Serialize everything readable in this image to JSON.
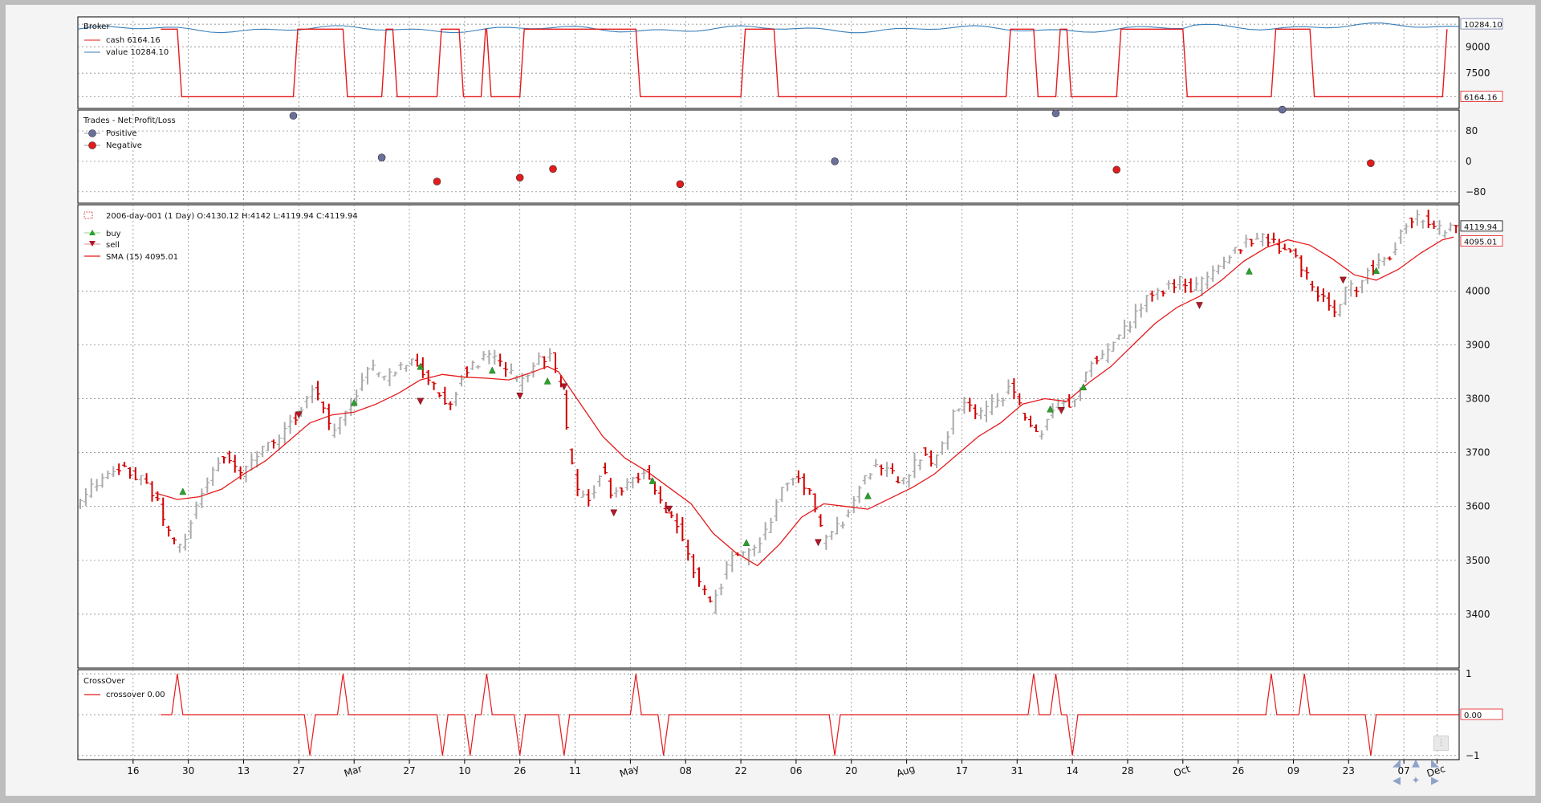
{
  "chart_data": [
    {
      "type": "line",
      "title": "Broker",
      "series": [
        {
          "name": "cash 6164.16",
          "color": "#e41a1c",
          "last": 6164.16
        },
        {
          "name": "value 10284.10",
          "color": "#377eb8",
          "last": 10284.1
        }
      ],
      "yticks": [
        "10284.10",
        "9000",
        "7500",
        "6164.16"
      ],
      "ylim": [
        5500,
        10700
      ],
      "cash_levels": {
        "high": 10000,
        "low": 6164.16
      },
      "cash_low_intervals": [
        [
          18,
          39
        ],
        [
          48,
          55
        ],
        [
          57,
          65
        ],
        [
          69,
          73
        ],
        [
          74,
          80
        ],
        [
          101,
          120
        ],
        [
          126,
          168
        ],
        [
          173,
          177
        ],
        [
          179,
          188
        ],
        [
          200,
          216
        ],
        [
          223,
          247
        ]
      ]
    },
    {
      "type": "scatter",
      "title": "Trades - Net Profit/Loss",
      "legend": [
        {
          "name": "Positive",
          "color": "#6a6f9b"
        },
        {
          "name": "Negative",
          "color": "#e41a1c"
        }
      ],
      "yticks": [
        "80",
        "0",
        "−80"
      ],
      "ylim": [
        -110,
        135
      ],
      "points": [
        {
          "x": 39,
          "y": 120,
          "kind": "Positive"
        },
        {
          "x": 55,
          "y": 10,
          "kind": "Positive"
        },
        {
          "x": 65,
          "y": -53,
          "kind": "Negative"
        },
        {
          "x": 80,
          "y": -43,
          "kind": "Negative"
        },
        {
          "x": 86,
          "y": -20,
          "kind": "Negative"
        },
        {
          "x": 109,
          "y": -60,
          "kind": "Negative"
        },
        {
          "x": 137,
          "y": 0,
          "kind": "Positive"
        },
        {
          "x": 177,
          "y": 126,
          "kind": "Positive"
        },
        {
          "x": 188,
          "y": -22,
          "kind": "Negative"
        },
        {
          "x": 218,
          "y": 136,
          "kind": "Positive"
        },
        {
          "x": 234,
          "y": -5,
          "kind": "Negative"
        }
      ]
    },
    {
      "type": "line",
      "title": "2006-day-001 (1 Day) O:4130.12 H:4142 L:4119.94 C:4119.94",
      "legend": [
        {
          "name": "buy",
          "color": "#2ca02c"
        },
        {
          "name": "sell",
          "color": "#b2182b"
        },
        {
          "name": "SMA (15) 4095.01",
          "color": "#e41a1c"
        }
      ],
      "yticks": [
        "4000",
        "3900",
        "3800",
        "3700",
        "3600",
        "3500",
        "3400"
      ],
      "ylim": [
        3300,
        4160
      ],
      "last_labels": {
        "close": "4119.94",
        "sma": "4095.01"
      },
      "price_path": [
        [
          0,
          3600
        ],
        [
          3,
          3640
        ],
        [
          8,
          3670
        ],
        [
          12,
          3650
        ],
        [
          15,
          3600
        ],
        [
          17,
          3540
        ],
        [
          19,
          3520
        ],
        [
          21,
          3580
        ],
        [
          23,
          3640
        ],
        [
          25,
          3670
        ],
        [
          27,
          3700
        ],
        [
          30,
          3660
        ],
        [
          33,
          3700
        ],
        [
          36,
          3720
        ],
        [
          39,
          3760
        ],
        [
          41,
          3790
        ],
        [
          43,
          3820
        ],
        [
          45,
          3780
        ],
        [
          46,
          3740
        ],
        [
          49,
          3780
        ],
        [
          51,
          3820
        ],
        [
          53,
          3860
        ],
        [
          56,
          3840
        ],
        [
          60,
          3870
        ],
        [
          62,
          3860
        ],
        [
          64,
          3830
        ],
        [
          67,
          3790
        ],
        [
          68,
          3800
        ],
        [
          70,
          3850
        ],
        [
          73,
          3870
        ],
        [
          75,
          3880
        ],
        [
          78,
          3850
        ],
        [
          80,
          3830
        ],
        [
          83,
          3870
        ],
        [
          86,
          3880
        ],
        [
          88,
          3800
        ],
        [
          89,
          3700
        ],
        [
          91,
          3610
        ],
        [
          93,
          3620
        ],
        [
          95,
          3670
        ],
        [
          97,
          3620
        ],
        [
          100,
          3650
        ],
        [
          103,
          3660
        ],
        [
          105,
          3620
        ],
        [
          107,
          3580
        ],
        [
          109,
          3560
        ],
        [
          111,
          3500
        ],
        [
          113,
          3450
        ],
        [
          115,
          3410
        ],
        [
          117,
          3470
        ],
        [
          119,
          3520
        ],
        [
          121,
          3510
        ],
        [
          123,
          3520
        ],
        [
          125,
          3560
        ],
        [
          127,
          3620
        ],
        [
          129,
          3650
        ],
        [
          131,
          3650
        ],
        [
          133,
          3620
        ],
        [
          135,
          3540
        ],
        [
          137,
          3550
        ],
        [
          139,
          3580
        ],
        [
          141,
          3620
        ],
        [
          143,
          3660
        ],
        [
          145,
          3680
        ],
        [
          147,
          3670
        ],
        [
          149,
          3640
        ],
        [
          151,
          3670
        ],
        [
          153,
          3700
        ],
        [
          155,
          3680
        ],
        [
          157,
          3720
        ],
        [
          159,
          3780
        ],
        [
          161,
          3790
        ],
        [
          163,
          3770
        ],
        [
          165,
          3780
        ],
        [
          167,
          3800
        ],
        [
          169,
          3820
        ],
        [
          170,
          3800
        ],
        [
          172,
          3760
        ],
        [
          174,
          3730
        ],
        [
          176,
          3770
        ],
        [
          178,
          3800
        ],
        [
          180,
          3790
        ],
        [
          182,
          3830
        ],
        [
          184,
          3870
        ],
        [
          186,
          3880
        ],
        [
          188,
          3910
        ],
        [
          190,
          3930
        ],
        [
          192,
          3960
        ],
        [
          194,
          3990
        ],
        [
          196,
          4000
        ],
        [
          198,
          4010
        ],
        [
          200,
          4020
        ],
        [
          202,
          4000
        ],
        [
          204,
          4020
        ],
        [
          206,
          4040
        ],
        [
          208,
          4060
        ],
        [
          210,
          4080
        ],
        [
          212,
          4090
        ],
        [
          214,
          4100
        ],
        [
          216,
          4090
        ],
        [
          218,
          4080
        ],
        [
          220,
          4070
        ],
        [
          222,
          4040
        ],
        [
          224,
          4000
        ],
        [
          226,
          3980
        ],
        [
          228,
          3960
        ],
        [
          230,
          4010
        ],
        [
          232,
          4000
        ],
        [
          234,
          4040
        ],
        [
          236,
          4050
        ],
        [
          238,
          4070
        ],
        [
          240,
          4120
        ],
        [
          242,
          4140
        ],
        [
          245,
          4130
        ],
        [
          247,
          4110
        ],
        [
          249,
          4120
        ]
      ],
      "sma_path": [
        [
          14,
          3625
        ],
        [
          18,
          3613
        ],
        [
          22,
          3618
        ],
        [
          26,
          3632
        ],
        [
          30,
          3660
        ],
        [
          34,
          3685
        ],
        [
          38,
          3720
        ],
        [
          42,
          3755
        ],
        [
          46,
          3770
        ],
        [
          50,
          3775
        ],
        [
          54,
          3790
        ],
        [
          58,
          3810
        ],
        [
          62,
          3835
        ],
        [
          66,
          3845
        ],
        [
          70,
          3840
        ],
        [
          74,
          3838
        ],
        [
          78,
          3835
        ],
        [
          82,
          3848
        ],
        [
          85,
          3860
        ],
        [
          87,
          3850
        ],
        [
          91,
          3790
        ],
        [
          95,
          3730
        ],
        [
          99,
          3690
        ],
        [
          103,
          3665
        ],
        [
          107,
          3635
        ],
        [
          111,
          3605
        ],
        [
          115,
          3550
        ],
        [
          119,
          3515
        ],
        [
          123,
          3490
        ],
        [
          127,
          3530
        ],
        [
          131,
          3580
        ],
        [
          135,
          3605
        ],
        [
          139,
          3600
        ],
        [
          143,
          3595
        ],
        [
          147,
          3615
        ],
        [
          151,
          3635
        ],
        [
          155,
          3660
        ],
        [
          159,
          3695
        ],
        [
          163,
          3730
        ],
        [
          167,
          3755
        ],
        [
          171,
          3790
        ],
        [
          175,
          3800
        ],
        [
          179,
          3795
        ],
        [
          183,
          3830
        ],
        [
          187,
          3860
        ],
        [
          191,
          3900
        ],
        [
          195,
          3940
        ],
        [
          199,
          3970
        ],
        [
          203,
          3990
        ],
        [
          207,
          4020
        ],
        [
          211,
          4055
        ],
        [
          215,
          4080
        ],
        [
          219,
          4095
        ],
        [
          223,
          4085
        ],
        [
          227,
          4060
        ],
        [
          231,
          4030
        ],
        [
          235,
          4020
        ],
        [
          239,
          4040
        ],
        [
          243,
          4070
        ],
        [
          247,
          4095
        ],
        [
          249,
          4100
        ]
      ],
      "buys": [
        [
          19,
          3628
        ],
        [
          50,
          3793
        ],
        [
          62,
          3860
        ],
        [
          75,
          3853
        ],
        [
          85,
          3833
        ],
        [
          104,
          3648
        ],
        [
          121,
          3533
        ],
        [
          143,
          3620
        ],
        [
          176,
          3781
        ],
        [
          182,
          3822
        ],
        [
          212,
          4037
        ],
        [
          235,
          4038
        ]
      ],
      "sells": [
        [
          40,
          3770
        ],
        [
          62,
          3795
        ],
        [
          80,
          3805
        ],
        [
          88,
          3822
        ],
        [
          97,
          3588
        ],
        [
          107,
          3595
        ],
        [
          134,
          3533
        ],
        [
          178,
          3778
        ],
        [
          203,
          3973
        ],
        [
          229,
          4020
        ]
      ]
    },
    {
      "type": "line",
      "title": "CrossOver",
      "legend": [
        {
          "name": "crossover 0.00",
          "color": "#e41a1c"
        }
      ],
      "yticks": [
        "1",
        "−1"
      ],
      "ylim": [
        -1.1,
        1.1
      ],
      "last_label": "0.00",
      "plus_one_at": [
        18,
        48,
        74,
        101,
        173,
        177,
        216,
        222
      ],
      "minus_one_at": [
        42,
        66,
        71,
        80,
        88,
        106,
        137,
        180,
        234
      ],
      "start_x": 15
    }
  ],
  "xaxis": {
    "xlim": [
      0,
      250
    ],
    "ticks": [
      {
        "x": 10,
        "label": "16"
      },
      {
        "x": 20,
        "label": "30"
      },
      {
        "x": 30,
        "label": "13"
      },
      {
        "x": 40,
        "label": "27"
      },
      {
        "x": 50,
        "label": "Mar",
        "rot": true
      },
      {
        "x": 60,
        "label": "27"
      },
      {
        "x": 70,
        "label": "10"
      },
      {
        "x": 80,
        "label": "26"
      },
      {
        "x": 90,
        "label": "11"
      },
      {
        "x": 100,
        "label": "May",
        "rot": true
      },
      {
        "x": 110,
        "label": "08"
      },
      {
        "x": 120,
        "label": "22"
      },
      {
        "x": 130,
        "label": "06"
      },
      {
        "x": 140,
        "label": "20"
      },
      {
        "x": 150,
        "label": "Aug",
        "rot": true
      },
      {
        "x": 160,
        "label": "17"
      },
      {
        "x": 170,
        "label": "31"
      },
      {
        "x": 180,
        "label": "14"
      },
      {
        "x": 190,
        "label": "28"
      },
      {
        "x": 200,
        "label": "Oct",
        "rot": true
      },
      {
        "x": 210,
        "label": "26"
      },
      {
        "x": 220,
        "label": "09"
      },
      {
        "x": 230,
        "label": "23"
      },
      {
        "x": 240,
        "label": "07"
      },
      {
        "x": 246,
        "label": "Dec",
        "rot": true
      }
    ]
  },
  "colors": {
    "red": "#e41a1c",
    "blue": "#6a77a8",
    "up": "#aaaaaa",
    "down": "#d00000",
    "buy": "#2ca02c",
    "sell": "#b2182b",
    "grid": "#777777"
  },
  "toolbar": {
    "icons": [
      "nav-up-left-icon",
      "nav-up-icon",
      "nav-up-right-icon",
      "nav-left-icon",
      "nav-center-icon",
      "nav-right-icon"
    ]
  }
}
